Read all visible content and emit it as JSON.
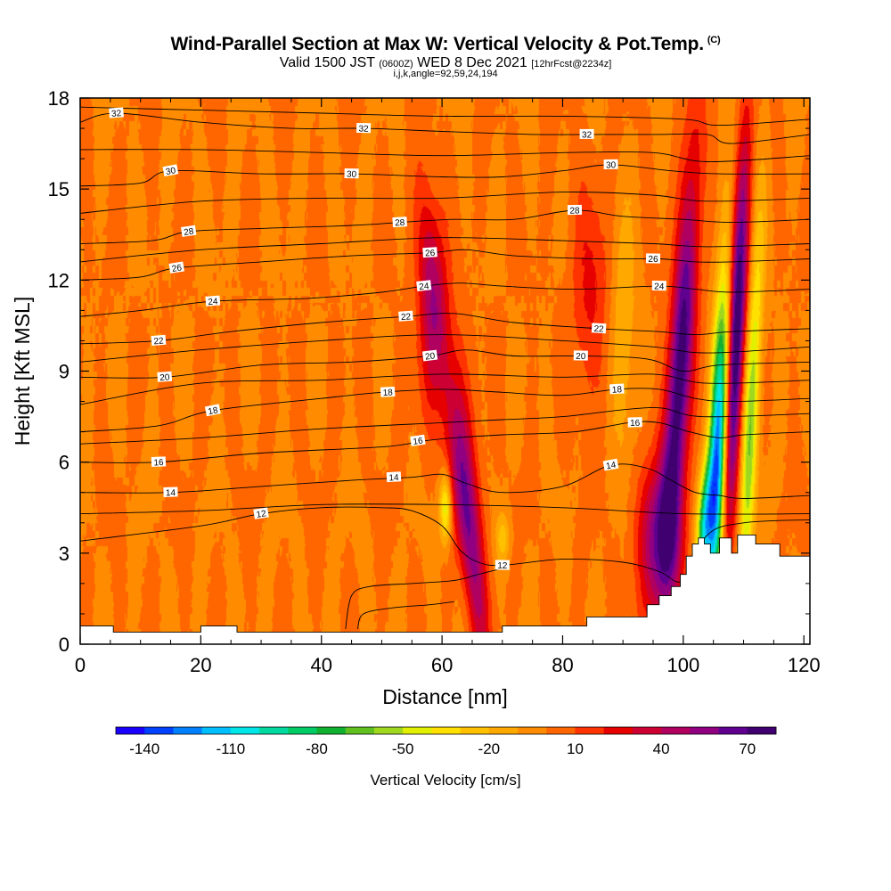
{
  "header": {
    "title": "Wind-Parallel Section at Max W: Vertical Velocity & Pot.Temp.",
    "title_mark": "(C)",
    "valid_prefix": "Valid 1500 JST",
    "valid_utc": "(0600Z)",
    "valid_date": "WED 8 Dec 2021",
    "forecast": "[12hrFcst@2234z]",
    "indices": "i,j,k,angle=92,59,24,194"
  },
  "chart_data": {
    "type": "heatmap",
    "title": "Wind-Parallel Section at Max W: Vertical Velocity & Pot.Temp.",
    "xlabel": "Distance [nm]",
    "ylabel": "Height [Kft MSL]",
    "xlim": [
      0,
      121
    ],
    "ylim": [
      0,
      18
    ],
    "x_ticks": [
      "0",
      "20",
      "40",
      "60",
      "80",
      "100",
      "120"
    ],
    "x_tick_values": [
      0,
      20,
      40,
      60,
      80,
      100,
      120
    ],
    "y_ticks": [
      "0",
      "3",
      "6",
      "9",
      "12",
      "15",
      "18"
    ],
    "y_tick_values": [
      0,
      3,
      6,
      9,
      12,
      15,
      18
    ],
    "colorbar": {
      "label": "Vertical Velocity [cm/s]",
      "tick_labels": [
        "-140",
        "-110",
        "-80",
        "-50",
        "-20",
        "10",
        "40",
        "70"
      ],
      "tick_values": [
        -140,
        -110,
        -80,
        -50,
        -20,
        10,
        40,
        70
      ],
      "min": -150,
      "max": 80,
      "colors": [
        "#1a00ff",
        "#0040ff",
        "#0080ff",
        "#00bfff",
        "#00e5e5",
        "#00d9a0",
        "#00cc66",
        "#10b030",
        "#60c020",
        "#a0d820",
        "#e0f000",
        "#ffe000",
        "#ffc000",
        "#ffa800",
        "#ff8c00",
        "#ff6600",
        "#ff3300",
        "#e60000",
        "#cc0033",
        "#b00060",
        "#900080",
        "#600090",
        "#400070"
      ]
    },
    "velocity_features": [
      {
        "kind": "updraft",
        "x_center": 64,
        "z_bottom": 0.5,
        "z_top": 15,
        "w_peak": 60,
        "lean": "tilted toward smaller x with height"
      },
      {
        "kind": "updraft",
        "x_center": 99,
        "z_bottom": 3,
        "z_top": 16.5,
        "w_peak": 75,
        "lean": "tilted toward larger x with height"
      },
      {
        "kind": "updraft",
        "x_center": 109,
        "z_bottom": 3.5,
        "z_top": 16,
        "w_peak": 70,
        "lean": "tilted toward larger x with height"
      },
      {
        "kind": "downdraft",
        "x_center": 104,
        "z_bottom": 3.5,
        "z_top": 13,
        "w_peak": -120,
        "lean": "tilted toward larger x with height"
      },
      {
        "kind": "downdraft",
        "x_center": 60.5,
        "z_bottom": 3.5,
        "z_top": 5.5,
        "w_peak": -40,
        "lean": "none"
      },
      {
        "kind": "weak-updraft",
        "x_center": 84,
        "z_bottom": 8,
        "z_top": 14,
        "w_peak": 25,
        "lean": "none"
      }
    ],
    "terrain": {
      "x": [
        0,
        5.5,
        5.5,
        20,
        20,
        26,
        26,
        70,
        70,
        84,
        84,
        94,
        94,
        96,
        96,
        98,
        98,
        99.5,
        99.5,
        100.5,
        100.5,
        101.5,
        101.5,
        102.5,
        102.5,
        103.5,
        103.5,
        104.5,
        104.5,
        106,
        106,
        108,
        108,
        109,
        109,
        112,
        112,
        116,
        116,
        121
      ],
      "z": [
        0.6,
        0.6,
        0.4,
        0.4,
        0.6,
        0.6,
        0.4,
        0.4,
        0.6,
        0.6,
        0.9,
        0.9,
        1.3,
        1.3,
        1.6,
        1.6,
        1.9,
        1.9,
        2.3,
        2.3,
        2.9,
        2.9,
        3.3,
        3.3,
        3.5,
        3.5,
        3.3,
        3.3,
        3.0,
        3.0,
        3.5,
        3.5,
        3.0,
        3.0,
        3.6,
        3.6,
        3.3,
        3.3,
        2.9,
        2.9
      ]
    },
    "theta_contours": [
      {
        "label": "12",
        "x": [
          0,
          20,
          30,
          40,
          50,
          55,
          60,
          63,
          66,
          70,
          80,
          90,
          96,
          100,
          104,
          110,
          121
        ],
        "z": [
          3.4,
          3.9,
          4.3,
          4.5,
          4.5,
          4.4,
          3.9,
          3.1,
          2.7,
          2.6,
          2.8,
          2.7,
          2.4,
          2.1,
          3.6,
          4.0,
          4.1
        ],
        "labels_at": [
          {
            "text": "12",
            "x": 30,
            "z": 4.3
          },
          {
            "text": "12",
            "x": 70,
            "z": 2.6
          }
        ]
      },
      {
        "label": "14",
        "x": [
          0,
          15,
          30,
          45,
          55,
          60,
          64,
          70,
          80,
          88,
          94,
          98,
          102,
          106,
          110,
          121
        ],
        "z": [
          5.0,
          5.0,
          5.2,
          5.4,
          5.5,
          5.6,
          5.3,
          5.0,
          5.2,
          5.9,
          5.8,
          5.4,
          5.0,
          4.9,
          4.8,
          4.9
        ],
        "labels_at": [
          {
            "text": "14",
            "x": 15,
            "z": 5.0
          },
          {
            "text": "14",
            "x": 52,
            "z": 5.5
          },
          {
            "text": "14",
            "x": 88,
            "z": 5.9
          }
        ]
      },
      {
        "label": "16",
        "x": [
          0,
          13,
          30,
          50,
          57,
          62,
          70,
          82,
          91,
          96,
          101,
          106,
          110,
          121
        ],
        "z": [
          6.0,
          6.0,
          6.3,
          6.5,
          6.7,
          6.8,
          6.9,
          7.0,
          7.3,
          7.3,
          7.0,
          6.8,
          6.9,
          7.0
        ],
        "labels_at": [
          {
            "text": "16",
            "x": 13,
            "z": 6.0
          },
          {
            "text": "16",
            "x": 56,
            "z": 6.7
          },
          {
            "text": "16",
            "x": 92,
            "z": 7.3
          }
        ]
      },
      {
        "label": "18",
        "x": [
          0,
          13,
          22,
          40,
          50,
          60,
          70,
          80,
          89,
          96,
          102,
          108,
          121
        ],
        "z": [
          7.0,
          7.2,
          7.7,
          8.1,
          8.3,
          8.4,
          8.3,
          8.2,
          8.4,
          8.4,
          8.1,
          8.0,
          8.1
        ],
        "labels_at": [
          {
            "text": "18",
            "x": 22,
            "z": 7.7
          },
          {
            "text": "18",
            "x": 51,
            "z": 8.3
          },
          {
            "text": "18",
            "x": 89,
            "z": 8.4
          }
        ]
      },
      {
        "label": "20",
        "x": [
          0,
          14,
          30,
          45,
          58,
          64,
          72,
          83,
          94,
          100,
          106,
          121
        ],
        "z": [
          8.8,
          8.8,
          9.2,
          9.3,
          9.5,
          9.7,
          9.5,
          9.5,
          9.4,
          9.0,
          9.2,
          9.3
        ],
        "labels_at": [
          {
            "text": "20",
            "x": 14,
            "z": 8.8
          },
          {
            "text": "20",
            "x": 58,
            "z": 9.5
          },
          {
            "text": "20",
            "x": 83,
            "z": 9.5
          }
        ]
      },
      {
        "label": "22",
        "x": [
          0,
          13,
          25,
          40,
          54,
          62,
          72,
          86,
          96,
          102,
          108,
          121
        ],
        "z": [
          9.9,
          10.0,
          10.3,
          10.6,
          10.8,
          10.9,
          10.6,
          10.4,
          10.3,
          10.2,
          10.3,
          10.4
        ],
        "labels_at": [
          {
            "text": "22",
            "x": 13,
            "z": 10.0
          },
          {
            "text": "22",
            "x": 54,
            "z": 10.8
          },
          {
            "text": "22",
            "x": 86,
            "z": 10.4
          }
        ]
      },
      {
        "label": "24",
        "x": [
          0,
          10,
          22,
          38,
          50,
          57,
          63,
          70,
          82,
          96,
          102,
          108,
          121
        ],
        "z": [
          10.8,
          11.0,
          11.3,
          11.4,
          11.6,
          11.8,
          11.9,
          11.8,
          11.7,
          11.8,
          11.7,
          11.6,
          11.7
        ],
        "labels_at": [
          {
            "text": "24",
            "x": 22,
            "z": 11.3
          },
          {
            "text": "24",
            "x": 57,
            "z": 11.8
          },
          {
            "text": "24",
            "x": 96,
            "z": 11.8
          }
        ]
      },
      {
        "label": "26",
        "x": [
          0,
          10,
          16,
          30,
          45,
          58,
          64,
          72,
          86,
          96,
          102,
          108,
          121
        ],
        "z": [
          12.0,
          12.1,
          12.4,
          12.6,
          12.8,
          12.9,
          13.0,
          12.8,
          12.7,
          12.7,
          12.6,
          12.6,
          12.7
        ],
        "labels_at": [
          {
            "text": "26",
            "x": 16,
            "z": 12.4
          },
          {
            "text": "26",
            "x": 58,
            "z": 12.9
          },
          {
            "text": "26",
            "x": 95,
            "z": 12.7
          }
        ]
      },
      {
        "label": "28",
        "x": [
          0,
          12,
          18,
          30,
          45,
          53,
          62,
          72,
          82,
          90,
          100,
          108,
          121
        ],
        "z": [
          13.2,
          13.3,
          13.6,
          13.7,
          13.8,
          13.9,
          14.0,
          14.0,
          14.3,
          14.1,
          14.0,
          13.9,
          14.0
        ],
        "labels_at": [
          {
            "text": "28",
            "x": 18,
            "z": 13.6
          },
          {
            "text": "28",
            "x": 53,
            "z": 13.9
          },
          {
            "text": "28",
            "x": 82,
            "z": 14.3
          }
        ]
      },
      {
        "label": "30",
        "x": [
          0,
          10,
          15,
          30,
          45,
          60,
          70,
          80,
          88,
          98,
          106,
          121
        ],
        "z": [
          15.1,
          15.2,
          15.6,
          15.5,
          15.5,
          15.4,
          15.4,
          15.6,
          15.8,
          15.6,
          15.5,
          15.5
        ],
        "labels_at": [
          {
            "text": "30",
            "x": 15,
            "z": 15.6
          },
          {
            "text": "30",
            "x": 45,
            "z": 15.5
          },
          {
            "text": "30",
            "x": 88,
            "z": 15.8
          }
        ]
      },
      {
        "label": "32",
        "x": [
          0,
          6,
          20,
          35,
          47,
          60,
          75,
          84,
          96,
          104,
          108,
          121
        ],
        "z": [
          17.2,
          17.5,
          17.2,
          17.0,
          17.0,
          16.9,
          16.8,
          16.8,
          16.8,
          16.8,
          16.5,
          16.8
        ],
        "labels_at": [
          {
            "text": "32",
            "x": 6,
            "z": 17.5
          },
          {
            "text": "32",
            "x": 47,
            "z": 17.0
          },
          {
            "text": "32",
            "x": 84,
            "z": 16.8
          }
        ]
      },
      {
        "label": "",
        "x": [
          0,
          20,
          40,
          60,
          80,
          100,
          121
        ],
        "z": [
          4.3,
          4.4,
          4.6,
          4.6,
          4.5,
          4.3,
          4.3
        ],
        "labels_at": []
      },
      {
        "label": "",
        "x": [
          0,
          20,
          40,
          60,
          70,
          80,
          95,
          103,
          121
        ],
        "z": [
          6.6,
          6.8,
          7.1,
          7.3,
          7.4,
          7.5,
          7.8,
          7.5,
          7.6
        ],
        "labels_at": []
      },
      {
        "label": "",
        "x": [
          0,
          20,
          40,
          60,
          80,
          95,
          104,
          121
        ],
        "z": [
          7.9,
          8.6,
          8.7,
          8.9,
          8.8,
          8.9,
          8.6,
          8.7
        ],
        "labels_at": []
      },
      {
        "label": "",
        "x": [
          0,
          20,
          40,
          60,
          80,
          95,
          104,
          121
        ],
        "z": [
          9.3,
          9.7,
          10.0,
          10.2,
          10.0,
          9.8,
          9.6,
          9.8
        ],
        "labels_at": []
      },
      {
        "label": "",
        "x": [
          0,
          20,
          40,
          60,
          80,
          95,
          104,
          121
        ],
        "z": [
          12.6,
          13.0,
          13.2,
          13.4,
          13.3,
          13.2,
          13.1,
          13.2
        ],
        "labels_at": []
      },
      {
        "label": "",
        "x": [
          0,
          20,
          40,
          60,
          80,
          95,
          104,
          121
        ],
        "z": [
          14.2,
          14.6,
          14.7,
          14.7,
          14.9,
          14.8,
          14.6,
          14.7
        ],
        "labels_at": []
      },
      {
        "label": "",
        "x": [
          0,
          20,
          40,
          60,
          80,
          95,
          104,
          121
        ],
        "z": [
          16.3,
          16.3,
          16.2,
          16.1,
          16.2,
          16.2,
          15.9,
          16.1
        ],
        "labels_at": []
      },
      {
        "label": "",
        "x": [
          0,
          20,
          40,
          60,
          80,
          100,
          106,
          121
        ],
        "z": [
          17.7,
          17.6,
          17.5,
          17.4,
          17.4,
          17.3,
          17.1,
          17.3
        ],
        "labels_at": []
      }
    ],
    "local_contours": [
      {
        "label": "",
        "x": [
          44,
          45,
          48,
          55,
          62,
          66,
          70
        ],
        "z": [
          0.5,
          1.6,
          1.9,
          2.0,
          2.1,
          2.3,
          2.5
        ]
      },
      {
        "label": "",
        "x": [
          46,
          47,
          52,
          58,
          62
        ],
        "z": [
          0.5,
          1.0,
          1.2,
          1.3,
          1.4
        ]
      }
    ]
  }
}
